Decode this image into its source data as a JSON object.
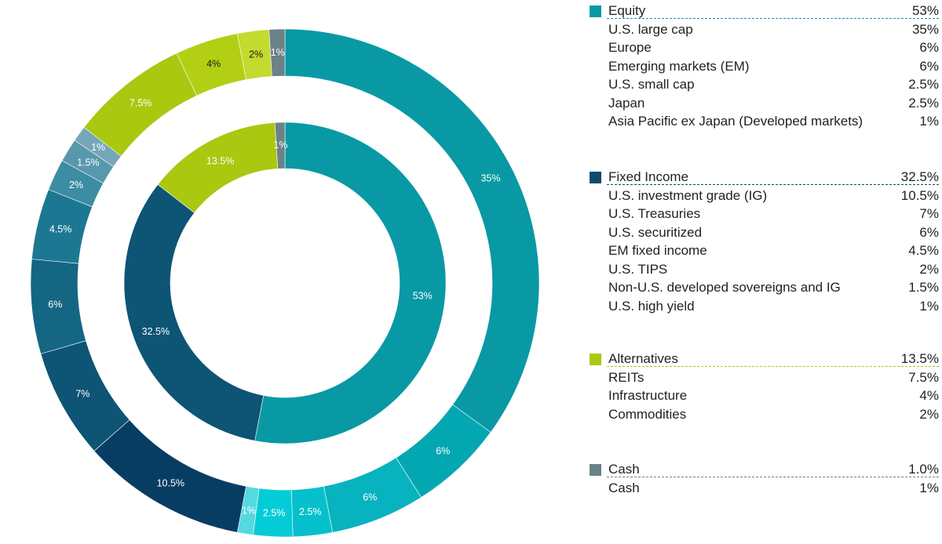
{
  "chart_data": {
    "type": "pie",
    "subtype": "nested-donut",
    "inner_ring": [
      {
        "name": "Equity",
        "value": 53,
        "label": "53%",
        "color": "#0899a5",
        "label_color": "#ffffff"
      },
      {
        "name": "Fixed Income",
        "value": 32.5,
        "label": "32.5%",
        "color": "#0d5475",
        "label_color": "#ffffff"
      },
      {
        "name": "Alternatives",
        "value": 13.5,
        "label": "13.5%",
        "color": "#a9c80f",
        "label_color": "#ffffff"
      },
      {
        "name": "Cash",
        "value": 1,
        "label": "1%",
        "color": "#6b8288",
        "label_color": "#ffffff"
      }
    ],
    "outer_ring": [
      {
        "name": "U.S. large cap",
        "value": 35,
        "label": "35%",
        "color": "#0899a5",
        "label_color": "#ffffff"
      },
      {
        "name": "Europe",
        "value": 6,
        "label": "6%",
        "color": "#03a7b2",
        "label_color": "#ffffff"
      },
      {
        "name": "Emerging markets (EM)",
        "value": 6,
        "label": "6%",
        "color": "#07b3bf",
        "label_color": "#ffffff"
      },
      {
        "name": "U.S. small cap",
        "value": 2.5,
        "label": "2.5%",
        "color": "#06c0cb",
        "label_color": "#ffffff"
      },
      {
        "name": "Japan",
        "value": 2.5,
        "label": "2.5%",
        "color": "#04ccd6",
        "label_color": "#ffffff"
      },
      {
        "name": "Asia Pacific ex Japan (Developed markets)",
        "value": 1,
        "label": "1%",
        "color": "#54d9e0",
        "label_color": "#ffffff"
      },
      {
        "name": "U.S. investment grade (IG)",
        "value": 10.5,
        "label": "10.5%",
        "color": "#083d63",
        "label_color": "#ffffff"
      },
      {
        "name": "U.S. Treasuries",
        "value": 7,
        "label": "7%",
        "color": "#0d5475",
        "label_color": "#ffffff"
      },
      {
        "name": "U.S. securitized",
        "value": 6,
        "label": "6%",
        "color": "#146683",
        "label_color": "#ffffff"
      },
      {
        "name": "EM fixed income",
        "value": 4.5,
        "label": "4.5%",
        "color": "#1c7892",
        "label_color": "#ffffff"
      },
      {
        "name": "U.S. TIPS",
        "value": 2,
        "label": "2%",
        "color": "#3d8ca3",
        "label_color": "#ffffff"
      },
      {
        "name": "Non-U.S. developed sovereigns and IG",
        "value": 1.5,
        "label": "1.5%",
        "color": "#5898ad",
        "label_color": "#ffffff"
      },
      {
        "name": "U.S. high yield",
        "value": 1,
        "label": "1%",
        "color": "#76a6b8",
        "label_color": "#ffffff"
      },
      {
        "name": "REITs",
        "value": 7.5,
        "label": "7.5%",
        "color": "#a9c80f",
        "label_color": "#ffffff"
      },
      {
        "name": "Infrastructure",
        "value": 4,
        "label": "4%",
        "color": "#b3cf14",
        "label_color": "#1a1a1a"
      },
      {
        "name": "Commodities",
        "value": 2,
        "label": "2%",
        "color": "#c3da2e",
        "label_color": "#1a1a1a"
      },
      {
        "name": "Cash",
        "value": 1,
        "label": "1%",
        "color": "#6b8288",
        "label_color": "#ffffff"
      }
    ]
  },
  "legend": {
    "groups": [
      {
        "name": "Equity",
        "value": "53%",
        "color": "#0899a5",
        "items": [
          {
            "label": "U.S. large cap",
            "value": "35%"
          },
          {
            "label": "Europe",
            "value": "6%"
          },
          {
            "label": "Emerging markets (EM)",
            "value": "6%"
          },
          {
            "label": "U.S. small cap",
            "value": "2.5%"
          },
          {
            "label": "Japan",
            "value": "2.5%"
          },
          {
            "label": "Asia Pacific ex Japan (Developed markets)",
            "value": "1%"
          }
        ]
      },
      {
        "name": "Fixed Income",
        "value": "32.5%",
        "color": "#0d4a6b",
        "items": [
          {
            "label": "U.S. investment grade (IG)",
            "value": "10.5%"
          },
          {
            "label": "U.S. Treasuries",
            "value": "7%"
          },
          {
            "label": "U.S. securitized",
            "value": "6%"
          },
          {
            "label": "EM fixed income",
            "value": "4.5%"
          },
          {
            "label": "U.S. TIPS",
            "value": "2%"
          },
          {
            "label": "Non-U.S. developed sovereigns and IG",
            "value": "1.5%"
          },
          {
            "label": "U.S. high yield",
            "value": "1%"
          }
        ]
      },
      {
        "name": "Alternatives",
        "value": "13.5%",
        "color": "#a9c80f",
        "items": [
          {
            "label": "REITs",
            "value": "7.5%"
          },
          {
            "label": "Infrastructure",
            "value": "4%"
          },
          {
            "label": "Commodities",
            "value": "2%"
          }
        ]
      },
      {
        "name": "Cash",
        "value": "1.0%",
        "color": "#6b8288",
        "items": [
          {
            "label": "Cash",
            "value": "1%"
          }
        ]
      }
    ]
  }
}
